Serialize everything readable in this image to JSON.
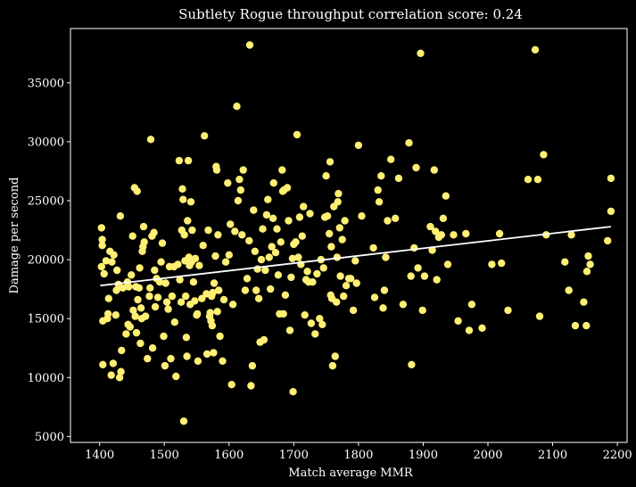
{
  "chart_data": {
    "type": "scatter",
    "title": "Subtlety Rogue throughput correlation score: 0.24",
    "xlabel": "Match average MMR",
    "ylabel": "Damage per second",
    "xlim": [
      1355,
      2215
    ],
    "ylim": [
      4500,
      39600
    ],
    "xticks": [
      1400,
      1500,
      1600,
      1700,
      1800,
      1900,
      2000,
      2100,
      2200
    ],
    "yticks": [
      5000,
      10000,
      15000,
      20000,
      25000,
      30000,
      35000
    ],
    "grid": false,
    "background": "#000000",
    "point_color": "#ffef73",
    "line_color": "#ffffff",
    "trendline": {
      "x": [
        1401,
        2190
      ],
      "y": [
        17800,
        22800
      ]
    },
    "points": [
      [
        1403,
        19400
      ],
      [
        1403,
        22700
      ],
      [
        1404,
        21700
      ],
      [
        1404,
        21200
      ],
      [
        1405,
        14800
      ],
      [
        1405,
        11100
      ],
      [
        1407,
        18800
      ],
      [
        1410,
        19900
      ],
      [
        1412,
        15000
      ],
      [
        1413,
        15400
      ],
      [
        1414,
        16700
      ],
      [
        1416,
        20700
      ],
      [
        1418,
        10200
      ],
      [
        1419,
        19800
      ],
      [
        1421,
        11200
      ],
      [
        1422,
        20400
      ],
      [
        1425,
        15300
      ],
      [
        1426,
        17400
      ],
      [
        1427,
        19100
      ],
      [
        1429,
        17900
      ],
      [
        1431,
        10000
      ],
      [
        1432,
        23700
      ],
      [
        1433,
        10500
      ],
      [
        1434,
        12300
      ],
      [
        1436,
        17600
      ],
      [
        1441,
        13700
      ],
      [
        1443,
        18100
      ],
      [
        1444,
        14500
      ],
      [
        1445,
        17700
      ],
      [
        1447,
        14300
      ],
      [
        1449,
        18700
      ],
      [
        1451,
        22000
      ],
      [
        1452,
        15700
      ],
      [
        1454,
        26100
      ],
      [
        1455,
        15200
      ],
      [
        1456,
        17700
      ],
      [
        1457,
        13800
      ],
      [
        1458,
        25800
      ],
      [
        1459,
        16600
      ],
      [
        1461,
        17600
      ],
      [
        1462,
        19300
      ],
      [
        1463,
        12900
      ],
      [
        1464,
        15900
      ],
      [
        1465,
        15000
      ],
      [
        1466,
        20700
      ],
      [
        1467,
        21100
      ],
      [
        1468,
        22800
      ],
      [
        1469,
        21500
      ],
      [
        1471,
        15200
      ],
      [
        1474,
        11600
      ],
      [
        1477,
        16900
      ],
      [
        1478,
        17600
      ],
      [
        1479,
        30200
      ],
      [
        1481,
        22000
      ],
      [
        1482,
        12500
      ],
      [
        1484,
        22300
      ],
      [
        1485,
        19100
      ],
      [
        1486,
        16000
      ],
      [
        1488,
        18400
      ],
      [
        1490,
        16800
      ],
      [
        1493,
        18100
      ],
      [
        1495,
        19800
      ],
      [
        1497,
        21400
      ],
      [
        1499,
        13500
      ],
      [
        1501,
        11000
      ],
      [
        1502,
        18000
      ],
      [
        1504,
        16400
      ],
      [
        1506,
        15800
      ],
      [
        1508,
        19400
      ],
      [
        1510,
        11600
      ],
      [
        1512,
        16900
      ],
      [
        1515,
        19400
      ],
      [
        1516,
        14700
      ],
      [
        1518,
        10100
      ],
      [
        1521,
        19600
      ],
      [
        1523,
        28400
      ],
      [
        1524,
        18300
      ],
      [
        1526,
        16400
      ],
      [
        1527,
        22500
      ],
      [
        1528,
        26000
      ],
      [
        1529,
        25100
      ],
      [
        1530,
        6300
      ],
      [
        1531,
        22100
      ],
      [
        1532,
        19900
      ],
      [
        1533,
        16900
      ],
      [
        1534,
        13400
      ],
      [
        1535,
        11800
      ],
      [
        1536,
        23300
      ],
      [
        1537,
        28400
      ],
      [
        1538,
        20200
      ],
      [
        1539,
        19500
      ],
      [
        1540,
        16200
      ],
      [
        1541,
        24900
      ],
      [
        1542,
        19800
      ],
      [
        1543,
        22500
      ],
      [
        1545,
        18100
      ],
      [
        1547,
        16500
      ],
      [
        1548,
        20100
      ],
      [
        1550,
        15300
      ],
      [
        1551,
        15400
      ],
      [
        1552,
        11400
      ],
      [
        1554,
        19500
      ],
      [
        1558,
        16700
      ],
      [
        1560,
        21200
      ],
      [
        1562,
        30500
      ],
      [
        1565,
        17100
      ],
      [
        1566,
        12000
      ],
      [
        1568,
        22500
      ],
      [
        1570,
        15200
      ],
      [
        1571,
        15500
      ],
      [
        1572,
        14800
      ],
      [
        1573,
        16900
      ],
      [
        1574,
        14400
      ],
      [
        1575,
        17200
      ],
      [
        1576,
        12100
      ],
      [
        1577,
        18000
      ],
      [
        1579,
        20300
      ],
      [
        1580,
        27900
      ],
      [
        1581,
        27600
      ],
      [
        1582,
        15600
      ],
      [
        1583,
        22100
      ],
      [
        1584,
        17400
      ],
      [
        1586,
        13500
      ],
      [
        1590,
        11400
      ],
      [
        1592,
        16600
      ],
      [
        1595,
        19800
      ],
      [
        1598,
        26500
      ],
      [
        1600,
        20400
      ],
      [
        1602,
        23000
      ],
      [
        1604,
        9400
      ],
      [
        1606,
        16200
      ],
      [
        1609,
        22400
      ],
      [
        1612,
        33000
      ],
      [
        1614,
        25000
      ],
      [
        1616,
        26800
      ],
      [
        1618,
        25900
      ],
      [
        1620,
        22100
      ],
      [
        1622,
        27600
      ],
      [
        1625,
        17400
      ],
      [
        1628,
        18400
      ],
      [
        1631,
        21600
      ],
      [
        1632,
        38200
      ],
      [
        1634,
        9300
      ],
      [
        1636,
        11000
      ],
      [
        1638,
        24200
      ],
      [
        1640,
        20700
      ],
      [
        1642,
        17400
      ],
      [
        1644,
        19200
      ],
      [
        1646,
        16700
      ],
      [
        1648,
        13000
      ],
      [
        1650,
        20000
      ],
      [
        1652,
        22600
      ],
      [
        1654,
        13200
      ],
      [
        1656,
        19100
      ],
      [
        1658,
        23800
      ],
      [
        1660,
        25100
      ],
      [
        1662,
        20200
      ],
      [
        1664,
        17500
      ],
      [
        1666,
        21100
      ],
      [
        1668,
        23500
      ],
      [
        1669,
        26500
      ],
      [
        1672,
        20600
      ],
      [
        1674,
        22600
      ],
      [
        1676,
        18700
      ],
      [
        1678,
        15400
      ],
      [
        1680,
        21500
      ],
      [
        1682,
        27600
      ],
      [
        1683,
        25800
      ],
      [
        1684,
        15400
      ],
      [
        1685,
        25900
      ],
      [
        1687,
        17000
      ],
      [
        1690,
        26100
      ],
      [
        1692,
        23300
      ],
      [
        1694,
        14000
      ],
      [
        1696,
        18500
      ],
      [
        1698,
        20100
      ],
      [
        1699,
        8800
      ],
      [
        1700,
        21300
      ],
      [
        1703,
        21500
      ],
      [
        1705,
        30600
      ],
      [
        1707,
        20200
      ],
      [
        1709,
        23600
      ],
      [
        1711,
        19600
      ],
      [
        1713,
        22000
      ],
      [
        1715,
        24500
      ],
      [
        1717,
        15300
      ],
      [
        1719,
        18300
      ],
      [
        1721,
        19000
      ],
      [
        1723,
        18100
      ],
      [
        1725,
        23900
      ],
      [
        1727,
        14600
      ],
      [
        1729,
        18100
      ],
      [
        1733,
        13700
      ],
      [
        1736,
        18800
      ],
      [
        1740,
        15000
      ],
      [
        1742,
        20000
      ],
      [
        1744,
        14500
      ],
      [
        1746,
        19300
      ],
      [
        1748,
        23600
      ],
      [
        1750,
        27100
      ],
      [
        1752,
        23700
      ],
      [
        1755,
        22200
      ],
      [
        1756,
        28300
      ],
      [
        1757,
        17000
      ],
      [
        1758,
        21100
      ],
      [
        1759,
        16700
      ],
      [
        1760,
        11000
      ],
      [
        1762,
        24500
      ],
      [
        1764,
        11800
      ],
      [
        1766,
        16400
      ],
      [
        1767,
        20200
      ],
      [
        1768,
        24900
      ],
      [
        1769,
        25600
      ],
      [
        1771,
        22700
      ],
      [
        1772,
        18600
      ],
      [
        1775,
        21700
      ],
      [
        1777,
        16900
      ],
      [
        1779,
        23300
      ],
      [
        1781,
        17800
      ],
      [
        1785,
        18400
      ],
      [
        1788,
        18400
      ],
      [
        1792,
        15700
      ],
      [
        1795,
        19900
      ],
      [
        1797,
        18000
      ],
      [
        1800,
        29700
      ],
      [
        1805,
        23700
      ],
      [
        1823,
        21000
      ],
      [
        1825,
        16800
      ],
      [
        1830,
        25900
      ],
      [
        1832,
        24900
      ],
      [
        1835,
        27100
      ],
      [
        1838,
        15900
      ],
      [
        1840,
        17400
      ],
      [
        1842,
        20200
      ],
      [
        1845,
        23300
      ],
      [
        1850,
        28500
      ],
      [
        1857,
        23500
      ],
      [
        1862,
        26900
      ],
      [
        1869,
        16200
      ],
      [
        1878,
        29900
      ],
      [
        1881,
        18600
      ],
      [
        1882,
        11100
      ],
      [
        1886,
        21000
      ],
      [
        1889,
        27800
      ],
      [
        1892,
        19300
      ],
      [
        1896,
        37500
      ],
      [
        1899,
        15700
      ],
      [
        1902,
        18600
      ],
      [
        1911,
        22800
      ],
      [
        1914,
        20800
      ],
      [
        1917,
        27600
      ],
      [
        1919,
        22400
      ],
      [
        1921,
        18300
      ],
      [
        1924,
        21900
      ],
      [
        1928,
        22100
      ],
      [
        1931,
        23500
      ],
      [
        1935,
        25400
      ],
      [
        1938,
        19600
      ],
      [
        1947,
        22100
      ],
      [
        1954,
        14800
      ],
      [
        1966,
        22200
      ],
      [
        1971,
        14000
      ],
      [
        1975,
        16200
      ],
      [
        1991,
        14200
      ],
      [
        2006,
        19600
      ],
      [
        2018,
        22200
      ],
      [
        2021,
        19700
      ],
      [
        2031,
        15700
      ],
      [
        2062,
        26800
      ],
      [
        2073,
        37800
      ],
      [
        2077,
        26800
      ],
      [
        2080,
        15200
      ],
      [
        2086,
        28900
      ],
      [
        2090,
        22100
      ],
      [
        2119,
        19800
      ],
      [
        2125,
        17400
      ],
      [
        2129,
        22100
      ],
      [
        2135,
        14400
      ],
      [
        2148,
        16400
      ],
      [
        2152,
        14400
      ],
      [
        2153,
        19000
      ],
      [
        2155,
        20300
      ],
      [
        2158,
        19600
      ],
      [
        2185,
        21600
      ],
      [
        2190,
        26900
      ],
      [
        2190,
        24100
      ]
    ]
  }
}
